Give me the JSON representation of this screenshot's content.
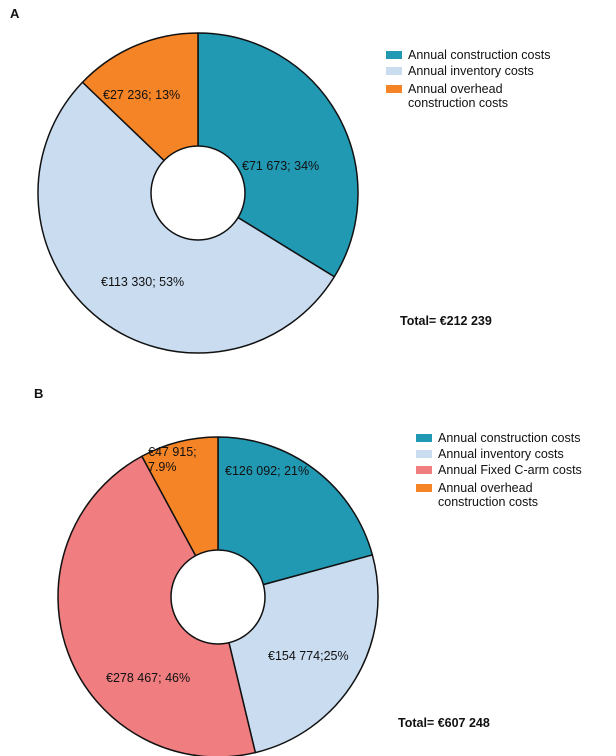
{
  "chart_data": [
    {
      "type": "pie",
      "panel": "A",
      "categories": [
        "Annual construction costs",
        "Annual inventory costs",
        "Annual overhead construction costs"
      ],
      "values": [
        71673,
        113330,
        27236
      ],
      "percent": [
        34,
        53,
        13
      ],
      "slice_labels": [
        "€71 673; 34%",
        "€113 330; 53%",
        "€27 236; 13%"
      ],
      "colors": [
        "#2299b3",
        "#c9dcf0",
        "#f58426"
      ],
      "legend": [
        {
          "lines": [
            "Annual construction costs"
          ],
          "color": "#2299b3"
        },
        {
          "lines": [
            "Annual inventory costs"
          ],
          "color": "#c9dcf0"
        },
        {
          "lines": [
            "Annual overhead",
            "construction costs"
          ],
          "color": "#f58426"
        }
      ],
      "legend_position": "top-right",
      "total": "Total= €212 239"
    },
    {
      "type": "pie",
      "panel": "B",
      "categories": [
        "Annual construction costs",
        "Annual inventory costs",
        "Annual Fixed C-arm costs",
        "Annual overhead construction costs"
      ],
      "values": [
        126092,
        154774,
        278467,
        47915
      ],
      "percent": [
        21,
        25,
        46,
        7.9
      ],
      "slice_labels": [
        "€126 092; 21%",
        "€154 774;25%",
        "€278 467; 46%",
        "€47 915; 7.9%"
      ],
      "colors": [
        "#2299b3",
        "#c9dcf0",
        "#f07e80",
        "#f58426"
      ],
      "legend": [
        {
          "lines": [
            "Annual construction costs"
          ],
          "color": "#2299b3"
        },
        {
          "lines": [
            "Annual inventory costs"
          ],
          "color": "#c9dcf0"
        },
        {
          "lines": [
            "Annual Fixed C-arm costs"
          ],
          "color": "#f07e80"
        },
        {
          "lines": [
            "Annual overhead",
            "construction costs"
          ],
          "color": "#f58426"
        }
      ],
      "legend_position": "top-right",
      "total": "Total= €607 248"
    }
  ]
}
